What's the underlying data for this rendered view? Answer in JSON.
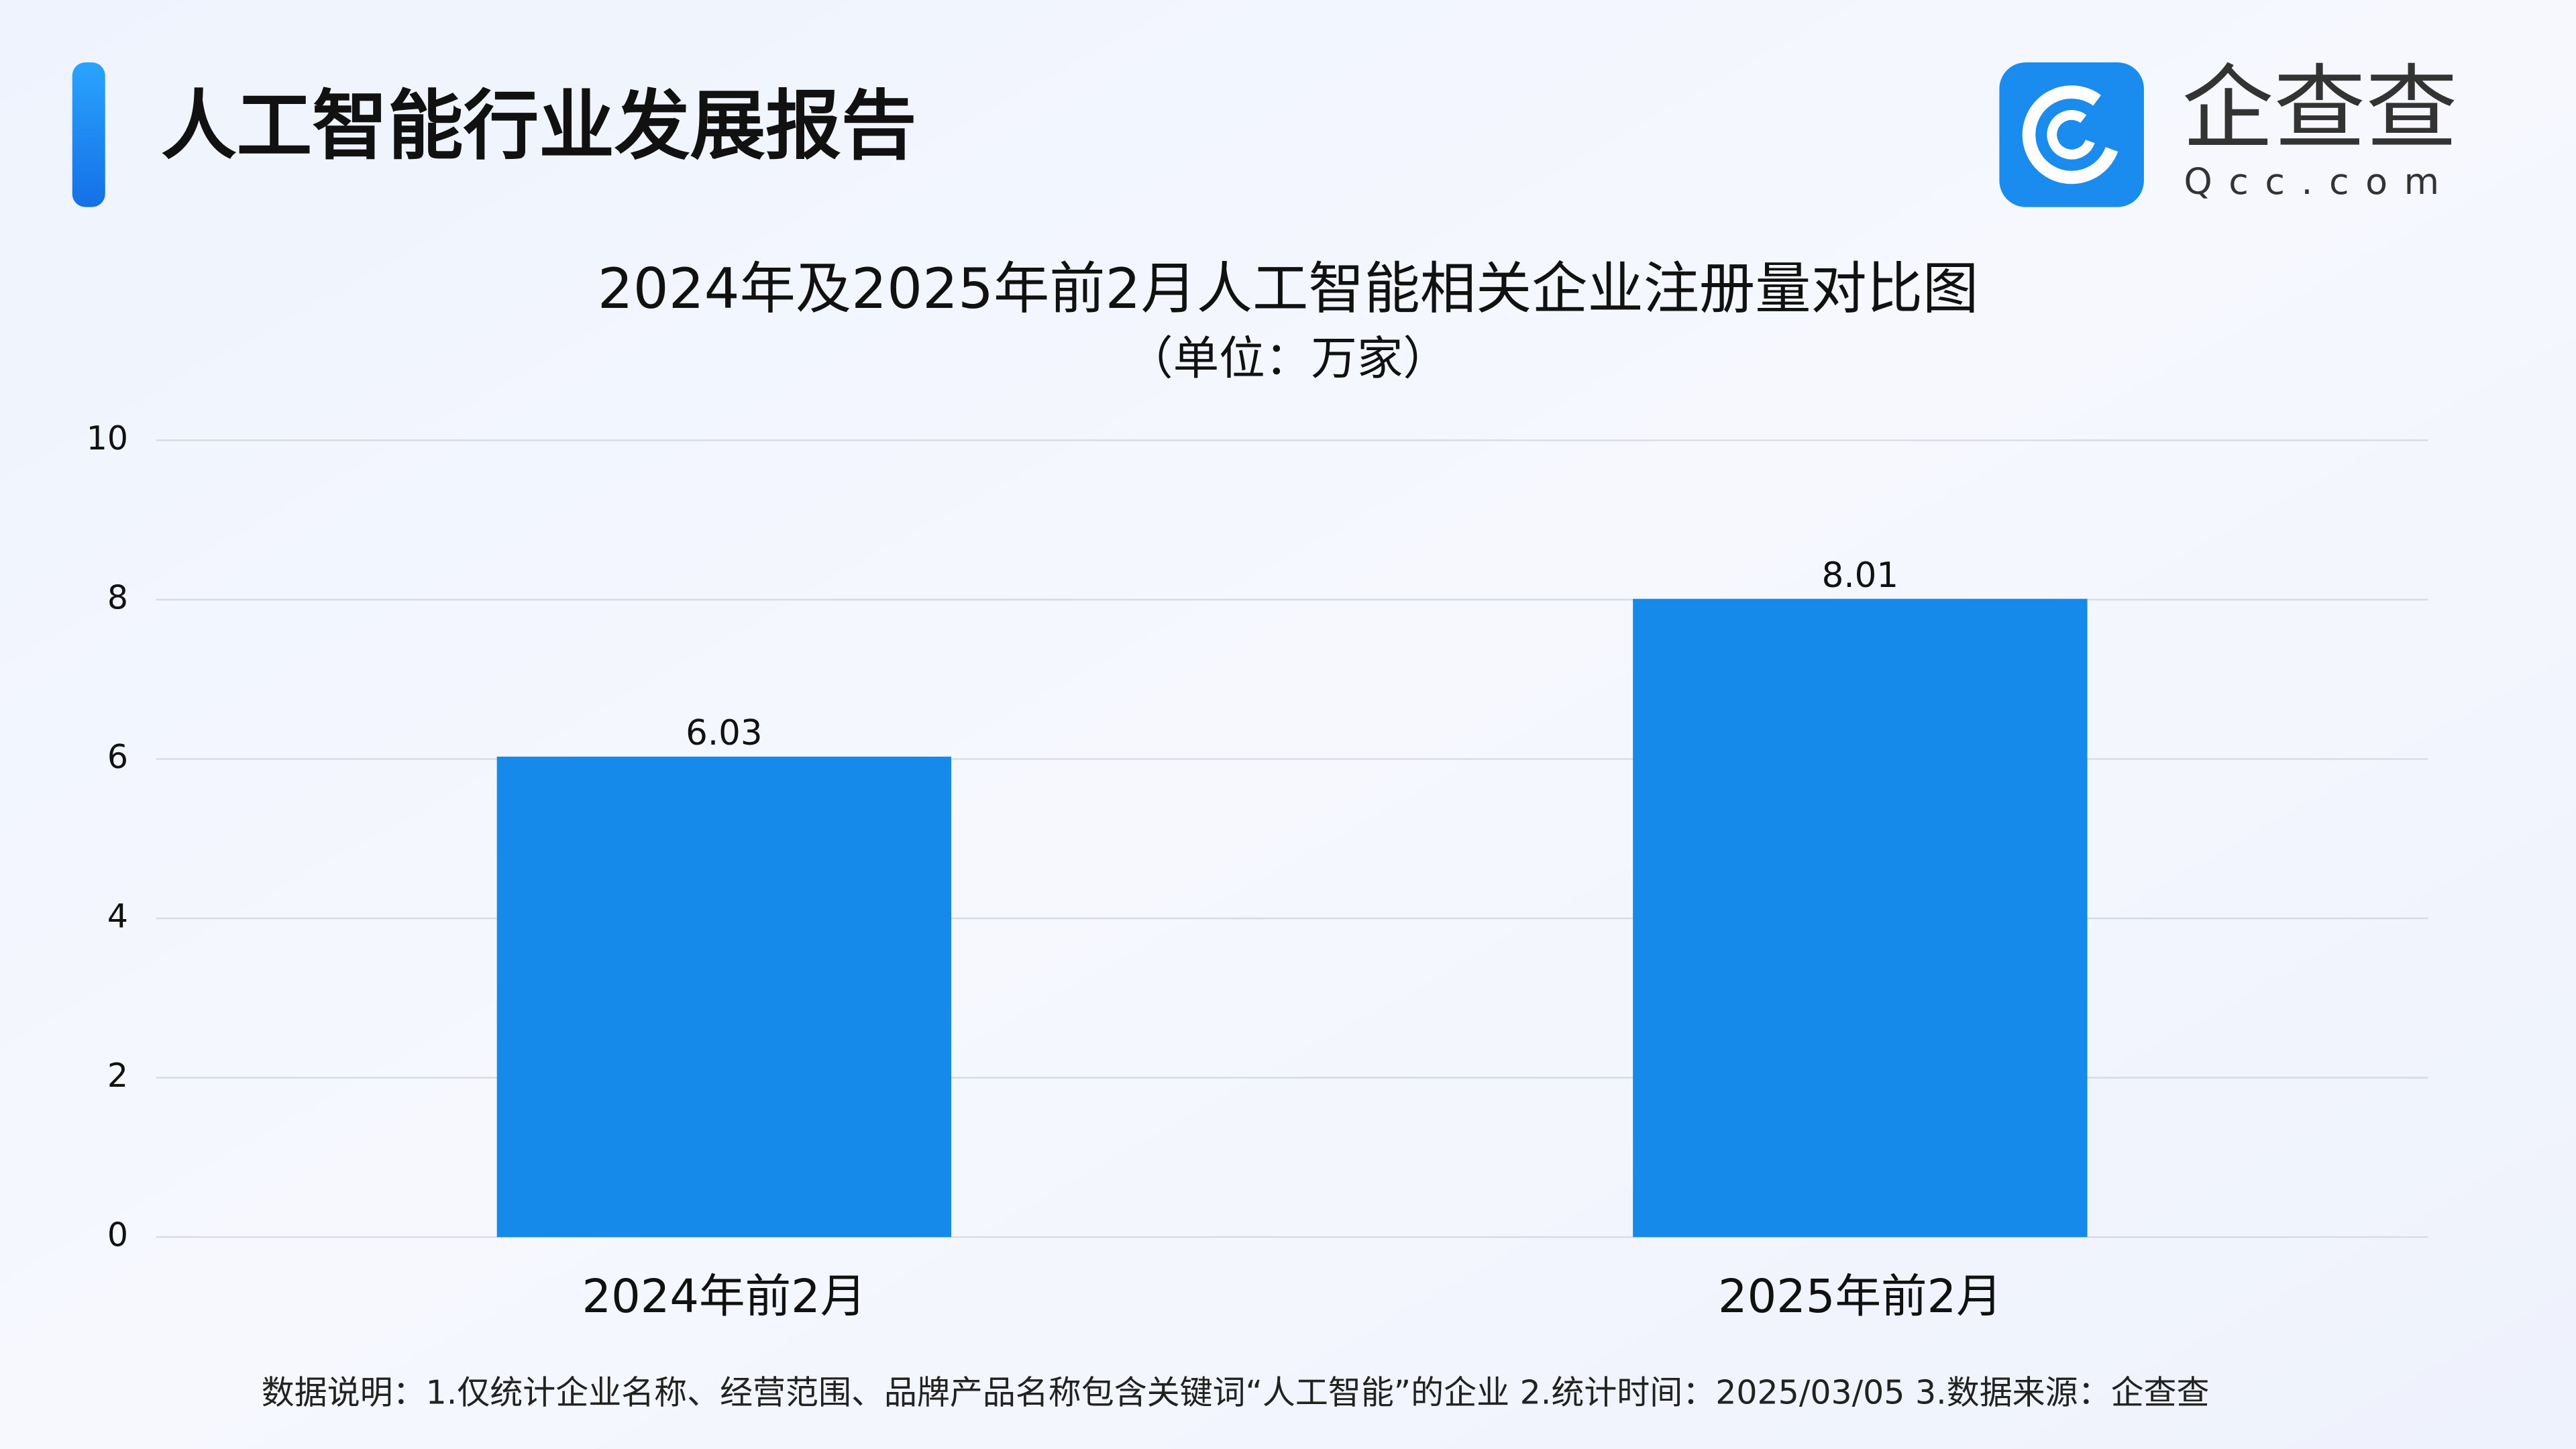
{
  "header": {
    "title": "人工智能行业发展报告",
    "logo": "企查查",
    "logo_sub": "Qcc.com"
  },
  "chart_data": {
    "type": "bar",
    "title": "2024年及2025年前2月人工智能相关企业注册量对比图",
    "subtitle": "（单位：万家）",
    "categories": [
      "2024年前2月",
      "2025年前2月"
    ],
    "values": [
      6.03,
      8.01
    ],
    "color": "#168aea",
    "ylim": [
      0,
      10
    ],
    "yticks": [
      0,
      2,
      4,
      6,
      8,
      10
    ],
    "grid": true
  },
  "footnote": "数据说明：1.仅统计企业名称、经营范围、品牌产品名称包含关键词“人工智能”的企业   2.统计时间：2025/03/05    3.数据来源：企查查"
}
